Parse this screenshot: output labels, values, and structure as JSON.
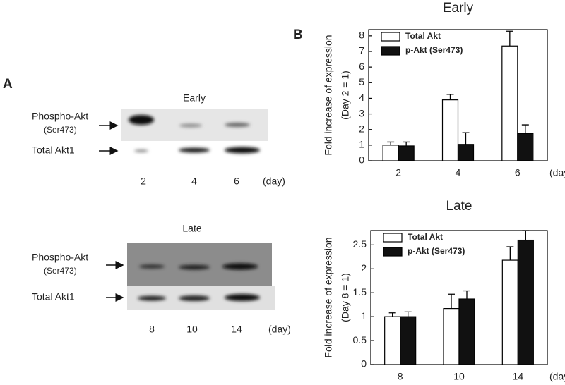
{
  "panel_labels": [
    "A",
    "B"
  ],
  "blots": [
    {
      "title": "Early",
      "rows": [
        [
          "Phospho-Akt",
          "(Ser473)"
        ],
        [
          "Total Akt1"
        ]
      ],
      "lanes": [
        "2",
        "4",
        "6"
      ],
      "unit": "(day)"
    },
    {
      "title": "Late",
      "rows": [
        [
          "Phospho-Akt",
          "(Ser473)"
        ],
        [
          "Total Akt1"
        ]
      ],
      "lanes": [
        "8",
        "10",
        "14"
      ],
      "unit": "(day)"
    }
  ],
  "chart_data": [
    {
      "type": "bar",
      "title": "Early",
      "ylabel": [
        "Fold increase of expression",
        "(Day 2 = 1)"
      ],
      "xunit": "(day)",
      "categories": [
        "2",
        "4",
        "6"
      ],
      "series": [
        {
          "name": "Total Akt",
          "color": "#ffffff",
          "values": [
            1.0,
            3.9,
            7.35
          ],
          "errors": [
            0.2,
            0.35,
            0.95
          ]
        },
        {
          "name": "p-Akt (Ser473)",
          "color": "#111111",
          "values": [
            0.95,
            1.05,
            1.75
          ],
          "errors": [
            0.25,
            0.75,
            0.55
          ]
        }
      ],
      "ylim": [
        0,
        8.4
      ],
      "yticks": [
        0,
        1,
        2,
        3,
        4,
        5,
        6,
        7,
        8
      ],
      "legend": "upper left"
    },
    {
      "type": "bar",
      "title": "Late",
      "ylabel": [
        "Fold increase of expression",
        "(Day 8 = 1)"
      ],
      "xunit": "(day)",
      "categories": [
        "8",
        "10",
        "14"
      ],
      "series": [
        {
          "name": "Total Akt",
          "color": "#ffffff",
          "values": [
            1.0,
            1.17,
            2.18
          ],
          "errors": [
            0.08,
            0.3,
            0.28
          ]
        },
        {
          "name": "p-Akt (Ser473)",
          "color": "#111111",
          "values": [
            1.0,
            1.37,
            2.6
          ],
          "errors": [
            0.1,
            0.17,
            0.2
          ]
        }
      ],
      "ylim": [
        0,
        2.8
      ],
      "yticks": [
        0,
        0.5,
        1,
        1.5,
        2,
        2.5
      ],
      "legend": "upper left"
    }
  ]
}
